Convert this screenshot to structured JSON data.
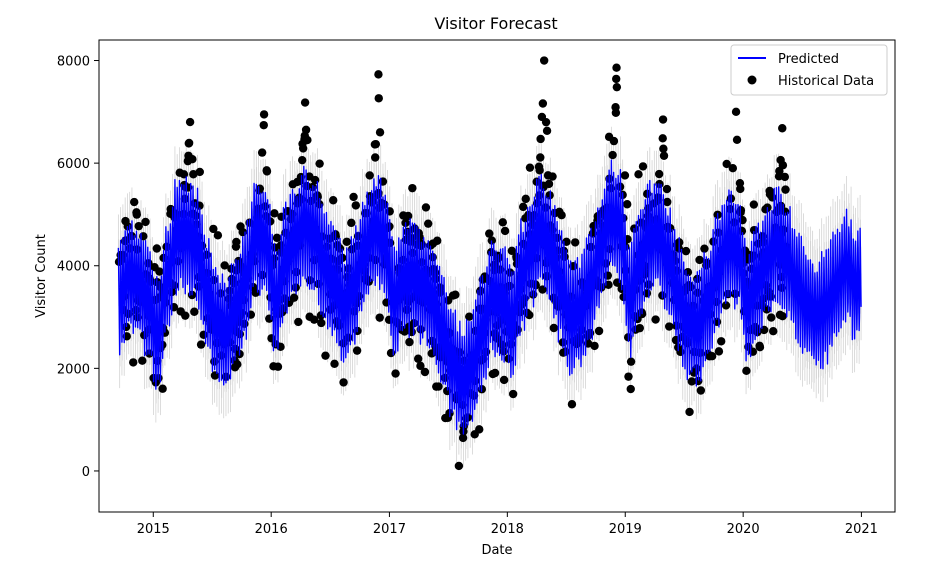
{
  "chart_data": {
    "type": "line",
    "title": "Visitor Forecast",
    "xlabel": "Date",
    "ylabel": "Visitor Count",
    "x_range": [
      "2014-07-17",
      "2021-04-15"
    ],
    "x_data_range": [
      "2014-09-15",
      "2020-12-31"
    ],
    "xticks": [
      "2015",
      "2016",
      "2017",
      "2018",
      "2019",
      "2020",
      "2021"
    ],
    "ylim": [
      -800,
      8400
    ],
    "yticks": [
      0,
      2000,
      4000,
      6000,
      8000
    ],
    "grid": false,
    "legend": {
      "placement": "top-right"
    },
    "colors": {
      "predicted": "#0000ff",
      "historical": "#000000",
      "uncertainty": "#d3d3d3"
    },
    "series": [
      {
        "name": "Predicted",
        "kind": "line",
        "monthly_trend": [
          [
            "2014-09",
            3300
          ],
          [
            "2014-10",
            3800
          ],
          [
            "2014-11",
            3700
          ],
          [
            "2014-12",
            3300
          ],
          [
            "2015-01",
            2600
          ],
          [
            "2015-02",
            3800
          ],
          [
            "2015-03",
            4600
          ],
          [
            "2015-04",
            4600
          ],
          [
            "2015-05",
            4400
          ],
          [
            "2015-06",
            3500
          ],
          [
            "2015-07",
            2900
          ],
          [
            "2015-08",
            2700
          ],
          [
            "2015-09",
            3200
          ],
          [
            "2015-10",
            3700
          ],
          [
            "2015-11",
            4600
          ],
          [
            "2015-12",
            4500
          ],
          [
            "2016-01",
            3300
          ],
          [
            "2016-02",
            4100
          ],
          [
            "2016-03",
            4500
          ],
          [
            "2016-04",
            4800
          ],
          [
            "2016-05",
            4600
          ],
          [
            "2016-06",
            4000
          ],
          [
            "2016-07",
            3600
          ],
          [
            "2016-08",
            3200
          ],
          [
            "2016-09",
            3600
          ],
          [
            "2016-10",
            4300
          ],
          [
            "2016-11",
            4700
          ],
          [
            "2016-12",
            4500
          ],
          [
            "2017-01",
            3300
          ],
          [
            "2017-02",
            3700
          ],
          [
            "2017-03",
            3800
          ],
          [
            "2017-04",
            3600
          ],
          [
            "2017-05",
            3300
          ],
          [
            "2017-06",
            2700
          ],
          [
            "2017-07",
            2100
          ],
          [
            "2017-08",
            1700
          ],
          [
            "2017-09",
            2000
          ],
          [
            "2017-10",
            2700
          ],
          [
            "2017-11",
            3400
          ],
          [
            "2017-12",
            3300
          ],
          [
            "2018-01",
            2900
          ],
          [
            "2018-02",
            3800
          ],
          [
            "2018-03",
            4300
          ],
          [
            "2018-04",
            4700
          ],
          [
            "2018-05",
            4300
          ],
          [
            "2018-06",
            3600
          ],
          [
            "2018-07",
            3000
          ],
          [
            "2018-08",
            3100
          ],
          [
            "2018-09",
            3600
          ],
          [
            "2018-10",
            4300
          ],
          [
            "2018-11",
            4900
          ],
          [
            "2018-12",
            4800
          ],
          [
            "2019-01",
            3300
          ],
          [
            "2019-02",
            4100
          ],
          [
            "2019-03",
            4500
          ],
          [
            "2019-04",
            4600
          ],
          [
            "2019-05",
            4100
          ],
          [
            "2019-06",
            3400
          ],
          [
            "2019-07",
            2900
          ],
          [
            "2019-08",
            2800
          ],
          [
            "2019-09",
            3300
          ],
          [
            "2019-10",
            3900
          ],
          [
            "2019-11",
            4400
          ],
          [
            "2019-12",
            4300
          ],
          [
            "2020-01",
            3200
          ],
          [
            "2020-02",
            3700
          ],
          [
            "2020-03",
            4100
          ],
          [
            "2020-04",
            4400
          ],
          [
            "2020-05",
            4100
          ],
          [
            "2020-06",
            3600
          ],
          [
            "2020-07",
            3200
          ],
          [
            "2020-08",
            3000
          ],
          [
            "2020-09",
            3200
          ],
          [
            "2020-10",
            3600
          ],
          [
            "2020-11",
            4000
          ],
          [
            "2020-12",
            3600
          ]
        ],
        "weekly_amplitude": 1300,
        "uncertainty_halfwidth": 650
      },
      {
        "name": "Historical Data",
        "kind": "scatter",
        "date_range": [
          "2014-09-15",
          "2020-05-15"
        ],
        "spread": 700,
        "peaks": [
          [
            "2015-04-25",
            6800
          ],
          [
            "2015-12-10",
            6950
          ],
          [
            "2016-04-15",
            7180
          ],
          [
            "2016-11-28",
            7730
          ],
          [
            "2018-04-25",
            8000
          ],
          [
            "2018-12-05",
            7860
          ],
          [
            "2019-04-28",
            6850
          ],
          [
            "2019-12-10",
            7000
          ],
          [
            "2020-05-01",
            6680
          ]
        ]
      }
    ]
  }
}
